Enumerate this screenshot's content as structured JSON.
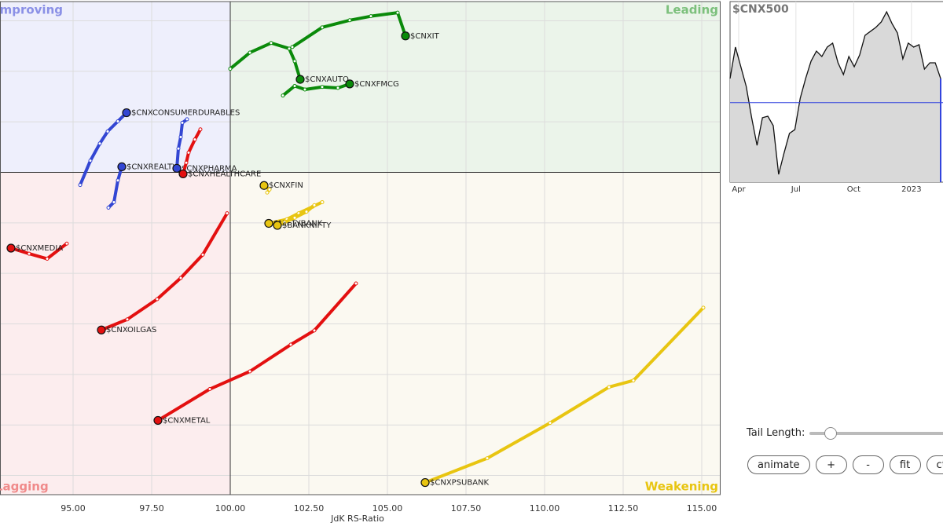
{
  "chart_data": [
    {
      "type": "rrg",
      "xlabel": "JdK RS-Ratio",
      "quadrants": {
        "improving": "Improving",
        "leading": "Leading",
        "lagging": "Lagging",
        "weakening": "Weakening"
      },
      "center": [
        100,
        100
      ],
      "xlim": [
        92.675,
        115.6
      ],
      "xticks": [
        {
          "value": 95,
          "label": "95.00"
        },
        {
          "value": 97.5,
          "label": "97.50"
        },
        {
          "value": 100,
          "label": "100.00"
        },
        {
          "value": 102.5,
          "label": "102.50"
        },
        {
          "value": 105,
          "label": "105.00"
        },
        {
          "value": 107.5,
          "label": "107.50"
        },
        {
          "value": 110,
          "label": "110.00"
        },
        {
          "value": 112.5,
          "label": "112.50"
        },
        {
          "value": 115,
          "label": "115.00"
        }
      ],
      "ylim": [
        93.62,
        103.38
      ],
      "yticks": [
        94,
        95,
        96,
        97,
        98,
        99,
        100,
        101,
        102,
        103
      ],
      "grid": true,
      "series": [
        {
          "name": "$CNXIT",
          "color": "#0a8a0a",
          "x": [
            101.975,
            102.925,
            103.8,
            104.475,
            105.325,
            105.575
          ],
          "y": [
            102.48,
            102.87,
            103.01,
            103.09,
            103.16,
            102.7
          ]
        },
        {
          "name": "$CNXAUTO",
          "color": "#0a8a0a",
          "x": [
            100.0,
            100.625,
            101.3,
            101.875,
            102.05,
            102.225
          ],
          "y": [
            102.05,
            102.37,
            102.56,
            102.45,
            102.2,
            101.84
          ]
        },
        {
          "name": "$CNXFMCG",
          "color": "#0a8a0a",
          "x": [
            101.675,
            102.05,
            102.375,
            102.925,
            103.425,
            103.8
          ],
          "y": [
            101.52,
            101.71,
            101.64,
            101.69,
            101.67,
            101.75
          ]
        },
        {
          "name": "$CNXCONSUMERDURABLES",
          "color": "#3346d3",
          "x": [
            95.225,
            95.55,
            95.85,
            96.1,
            96.425,
            96.7
          ],
          "y": [
            99.75,
            100.23,
            100.57,
            100.81,
            101.01,
            101.18
          ]
        },
        {
          "name": "$CNXREALTY",
          "color": "#3346d3",
          "x": [
            96.125,
            96.3,
            96.425,
            96.55
          ],
          "y": [
            99.3,
            99.41,
            99.84,
            100.11
          ]
        },
        {
          "name": "$CNXPHARMA",
          "color": "#3346d3",
          "x": [
            98.625,
            98.475,
            98.425,
            98.35,
            98.3
          ],
          "y": [
            101.05,
            100.98,
            100.7,
            100.47,
            100.08
          ]
        },
        {
          "name": "$CNXHEALTHCARE",
          "color": "#e31010",
          "x": [
            99.05,
            98.875,
            98.675,
            98.6,
            98.5
          ],
          "y": [
            100.85,
            100.65,
            100.39,
            100.19,
            99.97
          ]
        },
        {
          "name": "$CNXFIN",
          "color": "#e8c511",
          "x": [
            101.175,
            101.25,
            101.075
          ],
          "y": [
            99.6,
            99.66,
            99.74
          ]
        },
        {
          "name": "$NIFTYBANK",
          "color": "#e8c511",
          "x": [
            102.925,
            102.625,
            102.175,
            101.8,
            101.225
          ],
          "y": [
            99.41,
            99.32,
            99.19,
            99.07,
            98.99
          ]
        },
        {
          "name": "$BANKNIFTY",
          "color": "#e8c511",
          "x": [
            102.675,
            102.425,
            102.05,
            101.725,
            101.5
          ],
          "y": [
            99.35,
            99.22,
            99.1,
            99.01,
            98.95
          ]
        },
        {
          "name": "$CNXMEDIA",
          "color": "#e31010",
          "x": [
            94.8,
            94.175,
            93.6,
            93.025
          ],
          "y": [
            98.59,
            98.29,
            98.39,
            98.5
          ]
        },
        {
          "name": "$CNXOILGAS",
          "color": "#e31010",
          "x": [
            99.9,
            99.125,
            98.425,
            97.675,
            96.725,
            95.9
          ],
          "y": [
            99.19,
            98.37,
            97.91,
            97.49,
            97.09,
            96.88
          ]
        },
        {
          "name": "$CNXMETAL",
          "color": "#e31010",
          "x": [
            104.0,
            102.675,
            101.925,
            100.625,
            99.35,
            97.7
          ],
          "y": [
            97.8,
            96.87,
            96.59,
            96.06,
            95.71,
            95.09
          ]
        },
        {
          "name": "$CNXPSUBANK",
          "color": "#e8c511",
          "x": [
            115.05,
            112.825,
            112.05,
            110.175,
            108.175,
            106.2
          ],
          "y": [
            97.32,
            95.88,
            95.75,
            95.04,
            94.34,
            93.86
          ]
        }
      ]
    },
    {
      "type": "line",
      "title": "$CNX500",
      "color": "#111111",
      "fill": "#d9d9d9",
      "values": [
        57.4,
        74.8,
        63.9,
        53.0,
        35.7,
        20.4,
        35.7,
        36.5,
        31.3,
        4.3,
        16.1,
        27.0,
        29.1,
        46.5,
        57.4,
        67.0,
        72.6,
        69.6,
        74.8,
        77.0,
        66.1,
        59.6,
        69.6,
        63.9,
        70.4,
        81.3,
        83.5,
        85.7,
        88.7,
        94.3,
        87.8,
        82.6,
        68.3,
        77.0,
        74.8,
        76.1,
        62.6,
        66.1,
        66.1,
        57.4
      ],
      "ylim": [
        0,
        100
      ],
      "xticks": [
        {
          "value": 1.6,
          "label": "Apr"
        },
        {
          "value": 12.2,
          "label": "Jul"
        },
        {
          "value": 22.9,
          "label": "Oct"
        },
        {
          "value": 33.6,
          "label": "2023"
        }
      ],
      "baseline": 44
    }
  ],
  "controls": {
    "tail_label": "Tail Length:",
    "buttons": [
      "animate",
      "+",
      "-",
      "fit",
      "ctr"
    ]
  }
}
